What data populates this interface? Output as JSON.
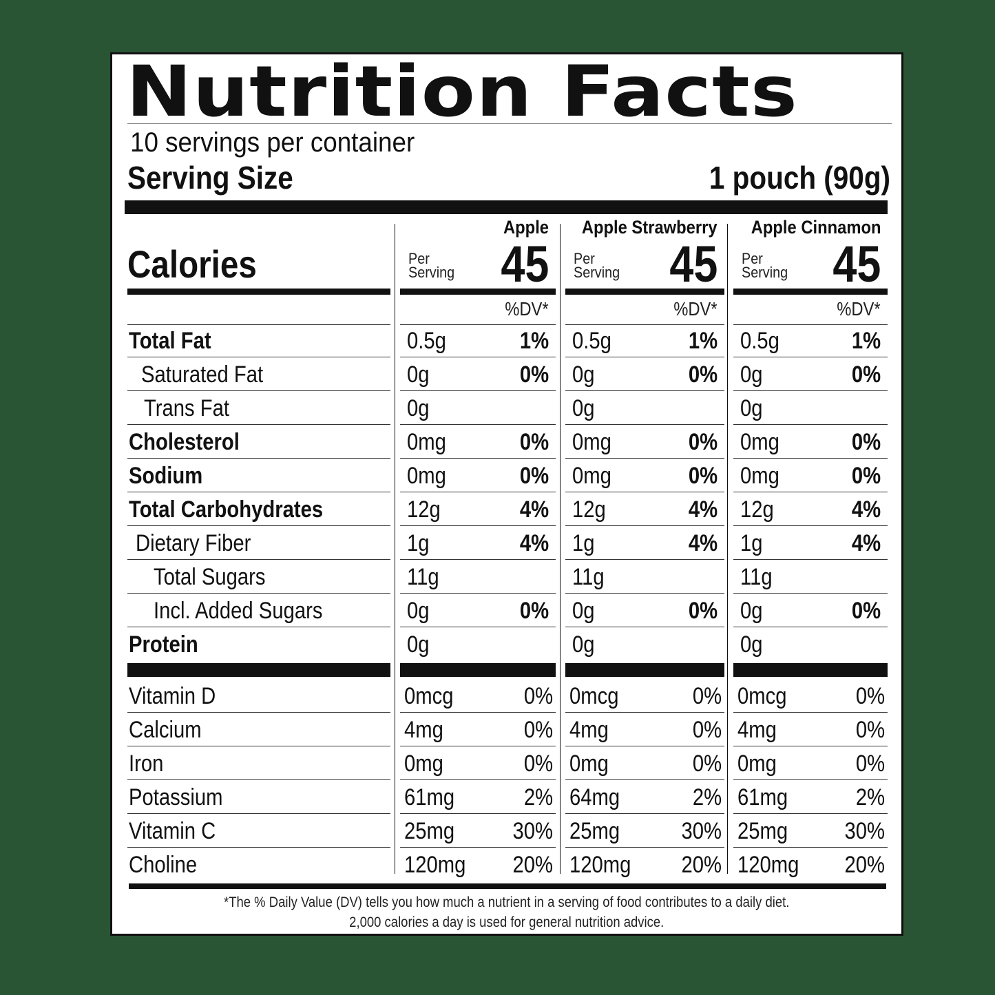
{
  "title": "Nutrition Facts",
  "servings_per_container": "10 servings per container",
  "serving_size_label": "Serving Size",
  "serving_size_value": "1 pouch (90g)",
  "calories_label": "Calories",
  "per_serving": [
    "Per",
    "Serving"
  ],
  "dv_header": "%DV*",
  "products": [
    {
      "name": "Apple",
      "calories": "45"
    },
    {
      "name": "Apple Strawberry",
      "calories": "45"
    },
    {
      "name": "Apple Cinnamon",
      "calories": "45"
    }
  ],
  "nutrients": [
    {
      "name": "Total Fat",
      "bold": true,
      "values": [
        [
          "0.5g",
          "1%"
        ],
        [
          "0.5g",
          "1%"
        ],
        [
          "0.5g",
          "1%"
        ]
      ]
    },
    {
      "name": "Saturated Fat",
      "bold": false,
      "values": [
        [
          "0g",
          "0%"
        ],
        [
          "0g",
          "0%"
        ],
        [
          "0g",
          "0%"
        ]
      ]
    },
    {
      "name": "Trans Fat",
      "bold": false,
      "values": [
        [
          "0g",
          ""
        ],
        [
          "0g",
          ""
        ],
        [
          "0g",
          ""
        ]
      ]
    },
    {
      "name": "Cholesterol",
      "bold": true,
      "values": [
        [
          "0mg",
          "0%"
        ],
        [
          "0mg",
          "0%"
        ],
        [
          "0mg",
          "0%"
        ]
      ]
    },
    {
      "name": "Sodium",
      "bold": true,
      "values": [
        [
          "0mg",
          "0%"
        ],
        [
          "0mg",
          "0%"
        ],
        [
          "0mg",
          "0%"
        ]
      ]
    },
    {
      "name": "Total Carbohydrates",
      "bold": true,
      "values": [
        [
          "12g",
          "4%"
        ],
        [
          "12g",
          "4%"
        ],
        [
          "12g",
          "4%"
        ]
      ]
    },
    {
      "name": "Dietary Fiber",
      "bold": false,
      "values": [
        [
          "1g",
          "4%"
        ],
        [
          "1g",
          "4%"
        ],
        [
          "1g",
          "4%"
        ]
      ]
    },
    {
      "name": "Total Sugars",
      "bold": false,
      "values": [
        [
          "11g",
          ""
        ],
        [
          "11g",
          ""
        ],
        [
          "11g",
          ""
        ]
      ]
    },
    {
      "name": "Incl. Added Sugars",
      "bold": false,
      "values": [
        [
          "0g",
          "0%"
        ],
        [
          "0g",
          "0%"
        ],
        [
          "0g",
          "0%"
        ]
      ]
    },
    {
      "name": "Protein",
      "bold": true,
      "values": [
        [
          "0g",
          ""
        ],
        [
          "0g",
          ""
        ],
        [
          "0g",
          ""
        ]
      ]
    }
  ],
  "vitamins": [
    {
      "name": "Vitamin D",
      "values": [
        [
          "0mcg",
          "0%"
        ],
        [
          "0mcg",
          "0%"
        ],
        [
          "0mcg",
          "0%"
        ]
      ]
    },
    {
      "name": "Calcium",
      "values": [
        [
          "4mg",
          "0%"
        ],
        [
          "4mg",
          "0%"
        ],
        [
          "4mg",
          "0%"
        ]
      ]
    },
    {
      "name": "Iron",
      "values": [
        [
          "0mg",
          "0%"
        ],
        [
          "0mg",
          "0%"
        ],
        [
          "0mg",
          "0%"
        ]
      ]
    },
    {
      "name": "Potassium",
      "values": [
        [
          "61mg",
          "2%"
        ],
        [
          "64mg",
          "2%"
        ],
        [
          "61mg",
          "2%"
        ]
      ]
    },
    {
      "name": "Vitamin C",
      "values": [
        [
          "25mg",
          "30%"
        ],
        [
          "25mg",
          "30%"
        ],
        [
          "25mg",
          "30%"
        ]
      ]
    },
    {
      "name": "Choline",
      "values": [
        [
          "120mg",
          "20%"
        ],
        [
          "120mg",
          "20%"
        ],
        [
          "120mg",
          "20%"
        ]
      ]
    }
  ],
  "footnote": [
    "*The % Daily Value (DV) tells you how much a nutrient in a serving of food contributes to a daily diet.",
    "2,000 calories a day is used for general nutrition advice."
  ]
}
